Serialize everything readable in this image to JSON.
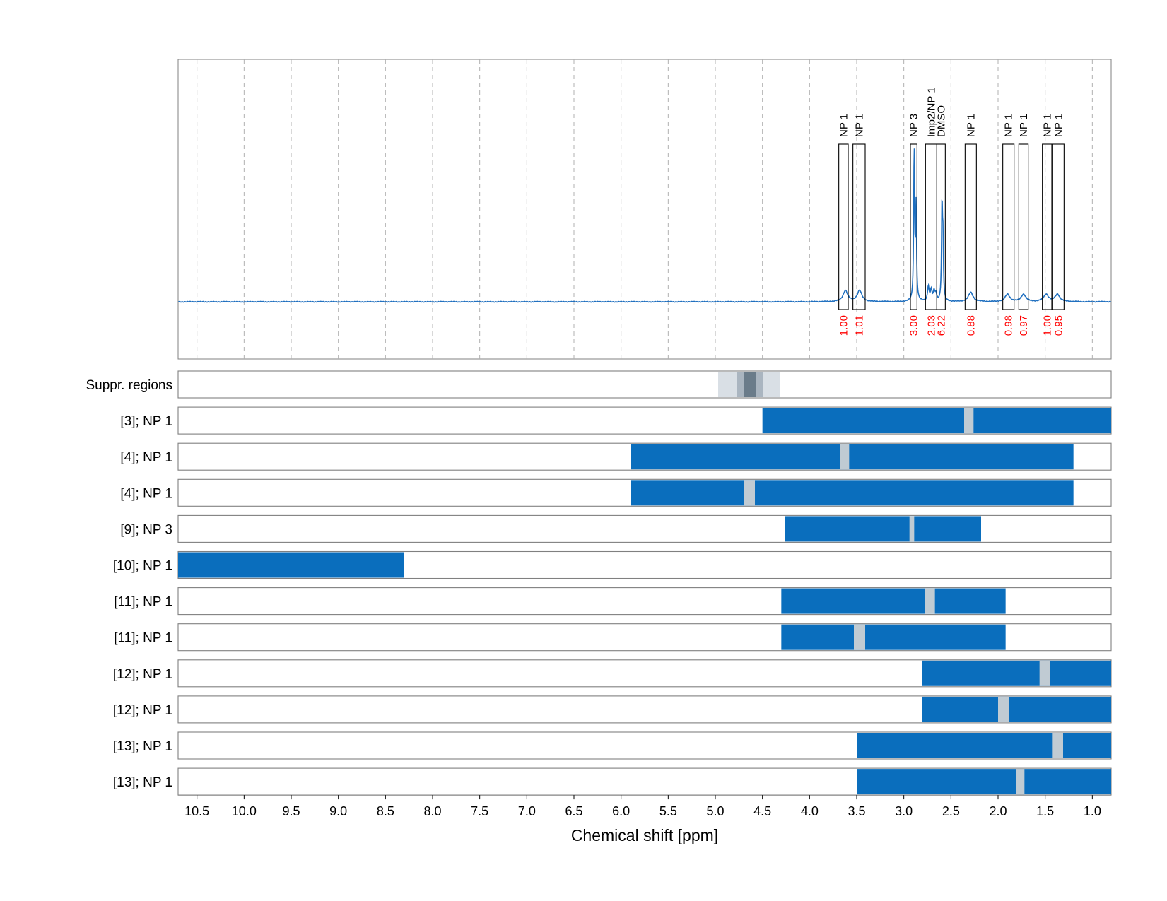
{
  "chart_data": {
    "type": "line",
    "xlabel": "Chemical shift [ppm]",
    "x_axis": {
      "reversed": true,
      "range": [
        10.7,
        0.8
      ],
      "ticks": [
        10.5,
        10.0,
        9.5,
        9.0,
        8.5,
        8.0,
        7.5,
        7.0,
        6.5,
        6.0,
        5.5,
        5.0,
        4.5,
        4.0,
        3.5,
        3.0,
        2.5,
        2.0,
        1.5,
        1.0
      ],
      "tick_labels": [
        "10.5",
        "10.0",
        "9.5",
        "9.0",
        "8.5",
        "8.0",
        "7.5",
        "7.0",
        "6.5",
        "6.0",
        "5.5",
        "5.0",
        "4.5",
        "4.0",
        "3.5",
        "3.0",
        "2.5",
        "2.0",
        "1.5",
        "1.0"
      ],
      "grid": "vertical dashed"
    },
    "spectrum": {
      "color": "#1f6fbf",
      "baseline": 0,
      "peaks": [
        {
          "x": 3.62,
          "height": 0.06,
          "width": 0.03
        },
        {
          "x": 3.47,
          "height": 0.06,
          "width": 0.03
        },
        {
          "x": 2.89,
          "height": 0.82,
          "width": 0.006
        },
        {
          "x": 2.87,
          "height": 0.5,
          "width": 0.006
        },
        {
          "x": 2.74,
          "height": 0.08,
          "width": 0.01
        },
        {
          "x": 2.71,
          "height": 0.06,
          "width": 0.01
        },
        {
          "x": 2.68,
          "height": 0.05,
          "width": 0.01
        },
        {
          "x": 2.66,
          "height": 0.04,
          "width": 0.01
        },
        {
          "x": 2.595,
          "height": 0.5,
          "width": 0.006
        },
        {
          "x": 2.585,
          "height": 0.3,
          "width": 0.006
        },
        {
          "x": 2.29,
          "height": 0.05,
          "width": 0.03
        },
        {
          "x": 1.9,
          "height": 0.04,
          "width": 0.03
        },
        {
          "x": 1.73,
          "height": 0.04,
          "width": 0.03
        },
        {
          "x": 1.49,
          "height": 0.04,
          "width": 0.03
        },
        {
          "x": 1.37,
          "height": 0.04,
          "width": 0.03
        }
      ]
    },
    "integration_regions": [
      {
        "label": "NP 1",
        "x_range": [
          3.69,
          3.59
        ],
        "value": "1.00"
      },
      {
        "label": "NP 1",
        "x_range": [
          3.54,
          3.41
        ],
        "value": "1.01"
      },
      {
        "label": "NP 3",
        "x_range": [
          2.93,
          2.86
        ],
        "value": "3.00"
      },
      {
        "label": "Imp2/NP 1",
        "x_range": [
          2.77,
          2.65
        ],
        "value": "2.03"
      },
      {
        "label": "DMSO",
        "x_range": [
          2.65,
          2.56
        ],
        "value": "6.22"
      },
      {
        "label": "NP 1",
        "x_range": [
          2.35,
          2.23
        ],
        "value": "0.88"
      },
      {
        "label": "NP 1",
        "x_range": [
          1.95,
          1.83
        ],
        "value": "0.98"
      },
      {
        "label": "NP 1",
        "x_range": [
          1.78,
          1.68
        ],
        "value": "0.97"
      },
      {
        "label": "NP 1",
        "x_range": [
          1.53,
          1.43
        ],
        "value": "1.00"
      },
      {
        "label": "NP 1",
        "x_range": [
          1.42,
          1.3
        ],
        "value": "0.95"
      }
    ],
    "suppression": {
      "label": "Suppr. regions",
      "light": [
        4.97,
        4.31
      ],
      "medium": [
        4.77,
        4.49
      ],
      "dark": [
        4.7,
        4.57
      ]
    },
    "rows": [
      {
        "label": "[3]; NP 1",
        "bar": [
          4.5,
          0.8
        ],
        "marker": [
          2.36,
          2.26
        ]
      },
      {
        "label": "[4]; NP 1",
        "bar": [
          5.9,
          1.2
        ],
        "marker": [
          3.68,
          3.58
        ]
      },
      {
        "label": "[4]; NP 1",
        "bar": [
          5.9,
          1.2
        ],
        "marker": [
          4.7,
          4.58
        ]
      },
      {
        "label": "[9]; NP 3",
        "bar": [
          4.26,
          2.18
        ],
        "marker": [
          2.94,
          2.89
        ]
      },
      {
        "label": "[10]; NP 1",
        "bar": [
          10.7,
          8.3
        ],
        "marker": null
      },
      {
        "label": "[11]; NP 1",
        "bar": [
          4.3,
          1.92
        ],
        "marker": [
          2.78,
          2.67
        ]
      },
      {
        "label": "[11]; NP 1",
        "bar": [
          4.3,
          1.92
        ],
        "marker": [
          3.53,
          3.41
        ]
      },
      {
        "label": "[12]; NP 1",
        "bar": [
          2.81,
          0.8
        ],
        "marker": [
          1.56,
          1.45
        ]
      },
      {
        "label": "[12]; NP 1",
        "bar": [
          2.81,
          0.8
        ],
        "marker": [
          2.0,
          1.88
        ]
      },
      {
        "label": "[13]; NP 1",
        "bar": [
          3.5,
          0.8
        ],
        "marker": [
          1.42,
          1.31
        ]
      },
      {
        "label": "[13]; NP 1",
        "bar": [
          3.5,
          0.8
        ],
        "marker": [
          1.81,
          1.72
        ]
      }
    ],
    "colors": {
      "bar": "#0a6ebd",
      "marker": "#c0cbd3",
      "suppr_light": "#d9dfe5",
      "suppr_medium": "#aab5c0",
      "suppr_dark": "#6b7c8a",
      "integral_text": "#ff0000",
      "frame": "#808080",
      "grid": "#b0b0b0"
    }
  }
}
